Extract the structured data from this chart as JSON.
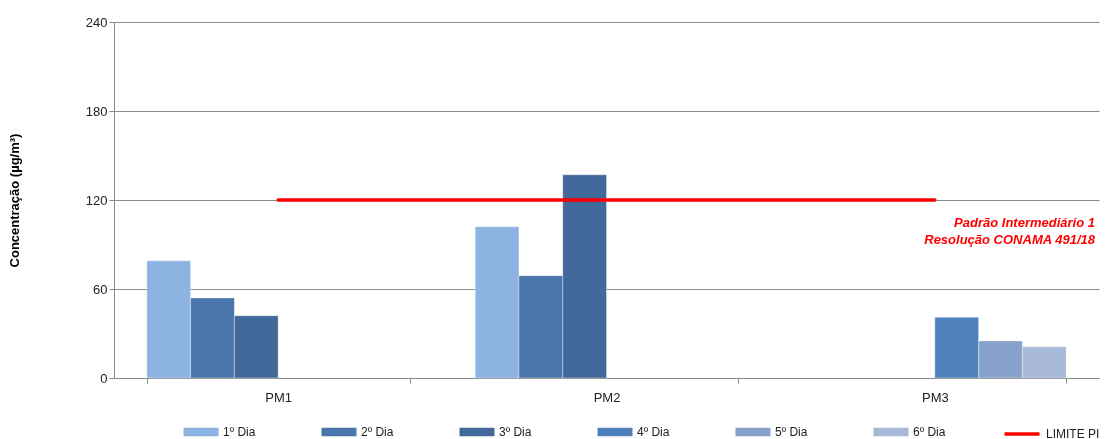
{
  "chart_data": {
    "type": "bar",
    "ylabel": "Concentração (µg/m³)",
    "categories": [
      "PM1",
      "PM2",
      "PM3"
    ],
    "series": [
      {
        "name": "1º Dia",
        "color": "#8db3e2",
        "values": [
          79,
          102,
          null
        ]
      },
      {
        "name": "2º Dia",
        "color": "#4a76ac",
        "values": [
          54,
          69,
          null
        ]
      },
      {
        "name": "3º Dia",
        "color": "#416999",
        "values": [
          42,
          137,
          null
        ]
      },
      {
        "name": "4º Dia",
        "color": "#4f81bd",
        "values": [
          null,
          null,
          41
        ]
      },
      {
        "name": "5º Dia",
        "color": "#87a2cb",
        "values": [
          null,
          null,
          25
        ]
      },
      {
        "name": "6º Dia",
        "color": "#a8b9d7",
        "values": [
          null,
          null,
          21
        ]
      },
      {
        "name": "LIMITE PI",
        "type": "line",
        "color": "#ff0000",
        "line_style": "solid",
        "values": [
          120,
          120,
          120
        ]
      }
    ],
    "ylim": [
      0,
      240
    ],
    "yticks": [
      0,
      60,
      120,
      180,
      240
    ],
    "grid": "y",
    "legend": "bottom",
    "annotations": [
      "Padrão Intermediário 1",
      "Resolução CONAMA 491/18"
    ]
  }
}
